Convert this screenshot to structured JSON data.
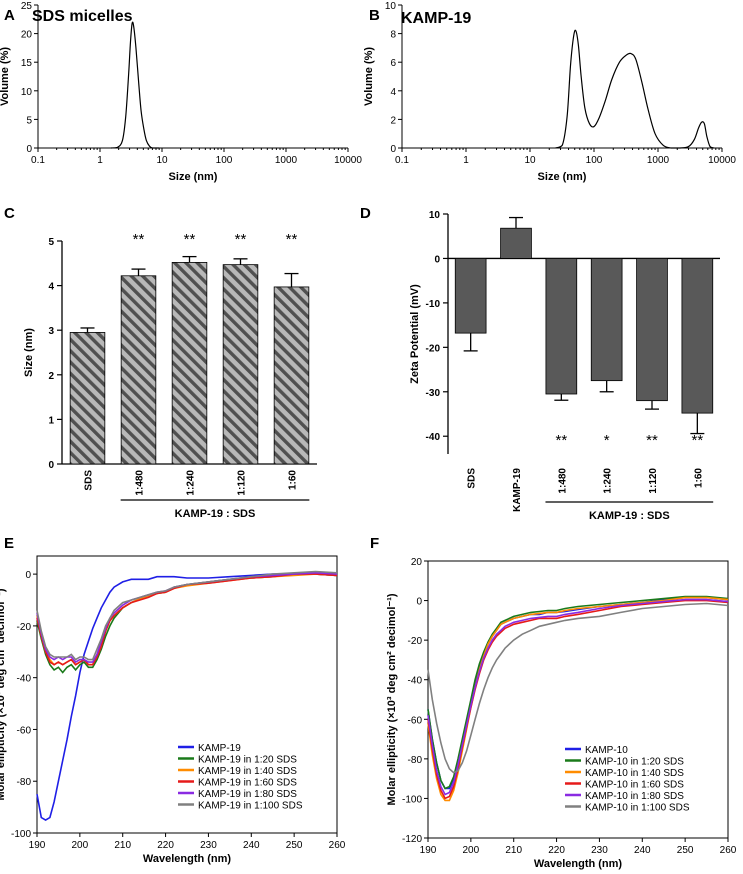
{
  "panel_labels": [
    "A",
    "B",
    "C",
    "D",
    "E",
    "F"
  ],
  "chart_data": [
    {
      "panel": "A",
      "type": "line",
      "title": "SDS micelles",
      "xlabel": "Size (nm)",
      "ylabel": "Volume (%)",
      "xscale": "log",
      "xlim": [
        0.1,
        10000
      ],
      "ylim": [
        0,
        25
      ],
      "xticks": [
        0.1,
        1,
        10,
        100,
        1000,
        10000
      ],
      "xtick_labels": [
        "0.1",
        "1",
        "10",
        "100",
        "1000",
        "10000"
      ],
      "yticks": [
        0,
        5,
        10,
        15,
        20,
        25
      ],
      "ytick_labels": [
        "0",
        "5",
        "10",
        "15",
        "20",
        "25"
      ],
      "x": [
        1.5,
        1.9,
        2.3,
        2.6,
        2.9,
        3.1,
        3.3,
        3.5,
        3.8,
        4.2,
        4.6,
        5.1,
        5.6,
        6.3,
        7.0,
        9.0
      ],
      "values": [
        0,
        0.1,
        1.3,
        5.5,
        13.0,
        18.5,
        21.8,
        21.2,
        17.5,
        11.5,
        6.5,
        3.3,
        1.3,
        0.3,
        0,
        0
      ]
    },
    {
      "panel": "B",
      "type": "line",
      "title": "KAMP-19",
      "xlabel": "Size (nm)",
      "ylabel": "Volume (%)",
      "xscale": "log",
      "xlim": [
        0.1,
        10000
      ],
      "ylim": [
        0,
        10
      ],
      "xticks": [
        0.1,
        1,
        10,
        100,
        1000,
        10000
      ],
      "xtick_labels": [
        "0.1",
        "1",
        "10",
        "100",
        "1000",
        "10000"
      ],
      "yticks": [
        0,
        2,
        4,
        6,
        8,
        10
      ],
      "ytick_labels": [
        "0",
        "2",
        "4",
        "6",
        "8",
        "10"
      ],
      "x": [
        25,
        32,
        38,
        43,
        48,
        52,
        57,
        63,
        72,
        85,
        100,
        120,
        150,
        190,
        250,
        320,
        380,
        450,
        560,
        700,
        900,
        1200,
        1600,
        2200,
        3000,
        3700,
        4300,
        4800,
        5300,
        5800,
        6500,
        7500
      ],
      "values": [
        0,
        0.2,
        2.2,
        5.8,
        7.8,
        8.2,
        7.2,
        5.0,
        2.8,
        1.7,
        1.5,
        2.1,
        3.3,
        4.8,
        6.0,
        6.5,
        6.6,
        6.2,
        4.6,
        2.7,
        1.0,
        0.2,
        0,
        0,
        0.1,
        0.6,
        1.4,
        1.8,
        1.7,
        0.8,
        0.1,
        0
      ]
    },
    {
      "panel": "C",
      "type": "bar",
      "xlabel": "",
      "ylabel": "Size (nm)",
      "group_label": "KAMP-19 : SDS",
      "categories": [
        "SDS",
        "1:480",
        "1:240",
        "1:120",
        "1:60"
      ],
      "values": [
        2.95,
        4.22,
        4.52,
        4.47,
        3.97
      ],
      "errors": [
        0.1,
        0.15,
        0.13,
        0.13,
        0.3
      ],
      "significance": [
        "",
        "**",
        "**",
        "**",
        "**"
      ],
      "ylim": [
        0,
        5
      ],
      "yticks": [
        0,
        1,
        2,
        3,
        4,
        5
      ],
      "ytick_labels": [
        "0",
        "1",
        "2",
        "3",
        "4",
        "5"
      ],
      "fill": "hatched"
    },
    {
      "panel": "D",
      "type": "bar",
      "xlabel": "",
      "ylabel": "Zeta Potential (mV)",
      "group_label": "KAMP-19 : SDS",
      "categories": [
        "SDS",
        "KAMP-19",
        "1:480",
        "1:240",
        "1:120",
        "1:60"
      ],
      "values": [
        -16.8,
        6.8,
        -30.5,
        -27.5,
        -32.0,
        -34.8
      ],
      "errors": [
        4.0,
        2.4,
        1.4,
        2.5,
        1.9,
        4.6
      ],
      "significance": [
        "",
        "",
        "**",
        "*",
        "**",
        "**"
      ],
      "ylim": [
        -44,
        10
      ],
      "yticks": [
        10,
        0,
        -10,
        -20,
        -30,
        -40
      ],
      "ytick_labels": [
        "10",
        "0",
        "-10",
        "-20",
        "-30",
        "-40"
      ],
      "color": "#595959"
    },
    {
      "panel": "E",
      "type": "line",
      "xlabel": "Wavelength (nm)",
      "ylabel": "Molar ellipticity (×10³ deg cm² decimol⁻¹)",
      "xlim": [
        190,
        260
      ],
      "ylim": [
        -100,
        7
      ],
      "xticks": [
        190,
        200,
        210,
        220,
        230,
        240,
        250,
        260
      ],
      "xtick_labels": [
        "190",
        "200",
        "210",
        "220",
        "230",
        "240",
        "250",
        "260"
      ],
      "yticks": [
        0,
        -20,
        -40,
        -60,
        -80,
        -100
      ],
      "ytick_labels": [
        "0",
        "-20",
        "-40",
        "-60",
        "-80",
        "-100"
      ],
      "x": [
        190,
        191,
        192,
        193,
        194,
        195,
        196,
        197,
        198,
        199,
        200,
        201,
        202,
        203,
        204,
        205,
        206,
        207,
        208,
        210,
        212,
        214,
        216,
        218,
        220,
        222,
        225,
        230,
        235,
        240,
        245,
        250,
        255,
        260
      ],
      "series": [
        {
          "name": "KAMP-19",
          "color": "#1f1fe6",
          "values": [
            -85,
            -94,
            -95,
            -94,
            -88,
            -80,
            -72,
            -64,
            -55,
            -47,
            -38,
            -31,
            -26,
            -21,
            -17,
            -13,
            -10,
            -7,
            -5,
            -3,
            -2,
            -2,
            -2,
            -1,
            -1,
            -1,
            -1.5,
            -1.5,
            -1,
            -0.5,
            0,
            0,
            0,
            -0.5
          ]
        },
        {
          "name": "KAMP-19 in 1:20 SDS",
          "color": "#1a7a1a",
          "values": [
            -18,
            -25,
            -31,
            -35,
            -37,
            -36,
            -38,
            -36,
            -35,
            -37,
            -35,
            -34,
            -36,
            -36,
            -33,
            -29,
            -24,
            -20,
            -17,
            -13,
            -11,
            -9.5,
            -8.5,
            -7.5,
            -7,
            -5,
            -4,
            -3,
            -2,
            -1.5,
            -1,
            0,
            0,
            -0.5
          ]
        },
        {
          "name": "KAMP-19 in 1:40 SDS",
          "color": "#ff8c00",
          "values": [
            -16,
            -24,
            -30,
            -33,
            -35,
            -34,
            -35,
            -34,
            -33,
            -35,
            -34,
            -33,
            -35,
            -35,
            -31,
            -27,
            -22,
            -18,
            -16,
            -13,
            -11,
            -9.5,
            -8.5,
            -7.5,
            -7,
            -5.5,
            -4.5,
            -3.5,
            -2.5,
            -1.5,
            -1,
            -0.5,
            0,
            -0.5
          ]
        },
        {
          "name": "KAMP-19 in 1:60 SDS",
          "color": "#e61a1a",
          "values": [
            -17,
            -24,
            -30,
            -34,
            -35,
            -34,
            -35,
            -34,
            -33,
            -35,
            -34,
            -33,
            -35,
            -35,
            -32,
            -28,
            -22,
            -18,
            -16,
            -13,
            -11,
            -10,
            -9,
            -7.5,
            -7,
            -5.5,
            -4,
            -3.5,
            -2.5,
            -1.5,
            -1,
            0,
            0,
            -0.5
          ]
        },
        {
          "name": "KAMP-19 in 1:80 SDS",
          "color": "#8a2be2",
          "values": [
            -15,
            -23,
            -29,
            -32,
            -33,
            -32,
            -33,
            -32,
            -32,
            -34,
            -33,
            -33,
            -34,
            -34,
            -31,
            -26,
            -21,
            -17,
            -15,
            -12,
            -10,
            -9,
            -8,
            -7,
            -6.5,
            -5,
            -4,
            -3,
            -2,
            -1,
            -0.5,
            0,
            0.5,
            0
          ]
        },
        {
          "name": "KAMP-19 in 1:100 SDS",
          "color": "#808080",
          "values": [
            -14,
            -22,
            -28,
            -31,
            -32,
            -32,
            -32,
            -32,
            -31,
            -33,
            -32,
            -32,
            -33,
            -33,
            -29,
            -25,
            -20,
            -17,
            -14,
            -11,
            -10,
            -9,
            -8,
            -7,
            -6.5,
            -5,
            -4,
            -3,
            -2,
            -1,
            0,
            0.5,
            1,
            0.5
          ]
        }
      ]
    },
    {
      "panel": "F",
      "type": "line",
      "xlabel": "Wavelength (nm)",
      "ylabel": "Molar ellipticity (×10³ deg cm² decimol⁻¹)",
      "xlim": [
        190,
        260
      ],
      "ylim": [
        -120,
        20
      ],
      "xticks": [
        190,
        200,
        210,
        220,
        230,
        240,
        250,
        260
      ],
      "xtick_labels": [
        "190",
        "200",
        "210",
        "220",
        "230",
        "240",
        "250",
        "260"
      ],
      "yticks": [
        20,
        0,
        -20,
        -40,
        -60,
        -80,
        -100,
        -120
      ],
      "ytick_labels": [
        "20",
        "0",
        "-20",
        "-40",
        "-60",
        "-80",
        "-100",
        "-120"
      ],
      "x": [
        190,
        191,
        192,
        193,
        194,
        195,
        196,
        197,
        198,
        199,
        200,
        201,
        202,
        203,
        204,
        205,
        206,
        207,
        208,
        210,
        212,
        214,
        216,
        218,
        220,
        222,
        225,
        230,
        235,
        240,
        245,
        250,
        255,
        260
      ],
      "series": [
        {
          "name": "KAMP-10",
          "color": "#1f1fe6",
          "values": [
            -55,
            -70,
            -82,
            -91,
            -95,
            -95,
            -90,
            -82,
            -72,
            -62,
            -52,
            -42,
            -34,
            -27,
            -22,
            -18,
            -15,
            -12,
            -11,
            -9,
            -8,
            -7,
            -7,
            -6,
            -6,
            -5.5,
            -4.5,
            -3,
            -2,
            -1,
            0.5,
            1.5,
            1.5,
            0.5
          ]
        },
        {
          "name": "KAMP-10 in 1:20 SDS",
          "color": "#1a7a1a",
          "values": [
            -55,
            -70,
            -82,
            -91,
            -95,
            -94,
            -89,
            -80,
            -70,
            -60,
            -50,
            -40,
            -32,
            -26,
            -21,
            -17,
            -14,
            -11,
            -10,
            -8,
            -7,
            -6,
            -5.5,
            -5,
            -5,
            -4,
            -3,
            -2,
            -1,
            0,
            1,
            2,
            2,
            1
          ]
        },
        {
          "name": "KAMP-10 in 1:40 SDS",
          "color": "#ff8c00",
          "values": [
            -62,
            -78,
            -90,
            -98,
            -101,
            -101,
            -96,
            -87,
            -76,
            -65,
            -54,
            -44,
            -35,
            -28,
            -22,
            -18,
            -15,
            -12,
            -11,
            -9,
            -8,
            -7,
            -6.5,
            -6,
            -6,
            -5,
            -4,
            -3,
            -2,
            -1,
            0,
            1.5,
            1.5,
            0.5
          ]
        },
        {
          "name": "KAMP-10 in 1:60 SDS",
          "color": "#e61a1a",
          "values": [
            -60,
            -75,
            -88,
            -96,
            -100,
            -99,
            -94,
            -85,
            -74,
            -64,
            -54,
            -45,
            -37,
            -30,
            -25,
            -21,
            -18,
            -16,
            -14,
            -12,
            -11,
            -10,
            -9,
            -9,
            -9,
            -8,
            -7,
            -5,
            -3,
            -2,
            -1,
            0,
            0,
            -1
          ]
        },
        {
          "name": "KAMP-10 in 1:80 SDS",
          "color": "#8a2be2",
          "values": [
            -58,
            -73,
            -86,
            -94,
            -98,
            -97,
            -92,
            -83,
            -73,
            -63,
            -53,
            -44,
            -36,
            -29,
            -24,
            -20,
            -17,
            -15,
            -13,
            -11,
            -10,
            -9,
            -8.5,
            -8,
            -8,
            -7,
            -6,
            -4,
            -2.5,
            -1.5,
            -0.5,
            0.5,
            0.5,
            -0.5
          ]
        },
        {
          "name": "KAMP-10 in 1:100 SDS",
          "color": "#808080",
          "values": [
            -35,
            -50,
            -62,
            -72,
            -80,
            -85,
            -87,
            -86,
            -82,
            -76,
            -68,
            -60,
            -52,
            -45,
            -39,
            -34,
            -30,
            -27,
            -24,
            -20,
            -17,
            -15,
            -13,
            -12,
            -11,
            -10,
            -9,
            -8,
            -6,
            -4,
            -3,
            -2,
            -1.5,
            -2.5
          ]
        }
      ]
    }
  ]
}
